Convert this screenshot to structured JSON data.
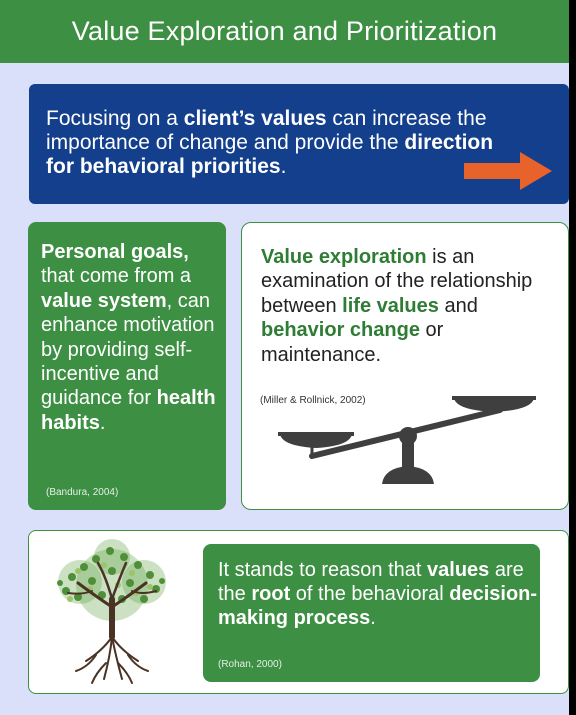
{
  "header": {
    "title": "Value Exploration and Prioritization"
  },
  "intro": {
    "part1": "Focusing on a ",
    "bold1": "client’s values",
    "part2": " can increase the importance of change and provide the ",
    "bold2": "direction for behavioral priorities",
    "part3": "."
  },
  "left_card": {
    "bold1": "Personal goals,",
    "part1": " that come from a ",
    "bold2": "value system",
    "part2": ", can enhance motivation by providing self-incentive and guidance for ",
    "bold3": "health habits",
    "part3": ".",
    "citation": "(Bandura, 2004)"
  },
  "right_card": {
    "bold1": "Value exploration",
    "part1": " is an examination of the relationship between ",
    "bold2": "life values",
    "part2": " and ",
    "bold3": "behavior change",
    "part3": " or maintenance.",
    "citation": "(Miller & Rollnick, 2002)"
  },
  "bottom_card": {
    "part1": "It stands to reason that ",
    "bold1": "values",
    "part2": " are the ",
    "bold2": "root",
    "part3": " of the behavioral ",
    "bold3": "decision-making process",
    "part4": ".",
    "citation": "(Rohan, 2000)"
  },
  "colors": {
    "header_green": "#3d8f43",
    "panel_lavender": "#dbe0fa",
    "intro_blue": "#133f8c",
    "arrow_orange": "#e8632b"
  },
  "icons": [
    "arrow-right-icon",
    "balance-scale-icon",
    "tree-icon"
  ]
}
